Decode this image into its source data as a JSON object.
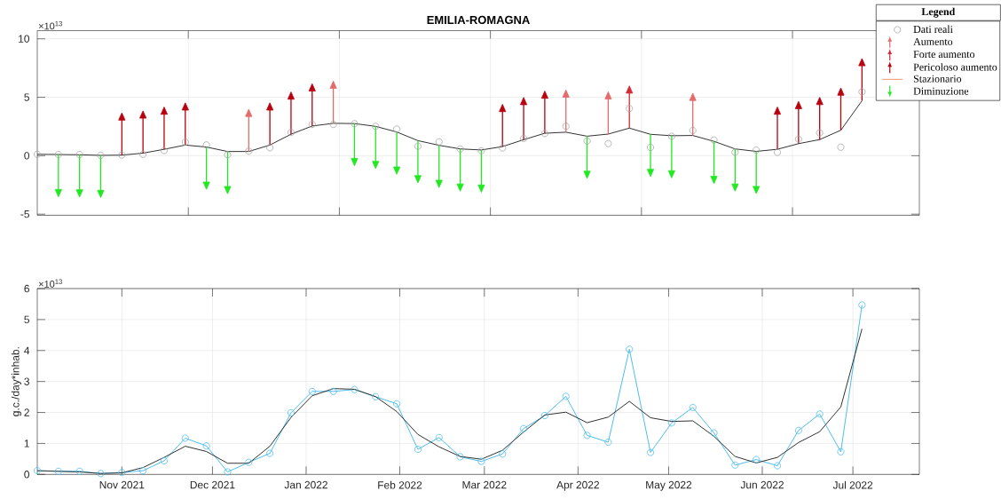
{
  "chart_data": [
    {
      "type": "line",
      "title": "EMILIA-ROMAGNA",
      "annotations": [
        "×10$^{13}$"
      ],
      "x": [
        "2021-10-04",
        "2021-10-11",
        "2021-10-18",
        "2021-10-25",
        "2021-11-01",
        "2021-11-08",
        "2021-11-15",
        "2021-11-22",
        "2021-11-29",
        "2021-12-06",
        "2021-12-13",
        "2021-12-20",
        "2021-12-27",
        "2022-01-03",
        "2022-01-10",
        "2022-01-17",
        "2022-01-24",
        "2022-01-31",
        "2022-02-07",
        "2022-02-14",
        "2022-02-21",
        "2022-02-28",
        "2022-03-07",
        "2022-03-14",
        "2022-03-21",
        "2022-03-28",
        "2022-04-04",
        "2022-04-11",
        "2022-04-18",
        "2022-04-25",
        "2022-05-02",
        "2022-05-09",
        "2022-05-16",
        "2022-05-23",
        "2022-05-30",
        "2022-06-06",
        "2022-06-13",
        "2022-06-20",
        "2022-06-27",
        "2022-07-04"
      ],
      "xlim": [
        "2021-10-04",
        "2022-07-23"
      ],
      "xticks": [
        {
          "value": "2021-11-23",
          "label": null
        },
        {
          "value": "2022-01-12",
          "label": null
        },
        {
          "value": "2022-03-03",
          "label": null
        },
        {
          "value": "2022-04-22",
          "label": null
        },
        {
          "value": "2022-06-11",
          "label": null
        }
      ],
      "ylim": [
        -5.1,
        10.7
      ],
      "yticks": [
        -5,
        0,
        5,
        10
      ],
      "tick_labels": "y",
      "grid": true,
      "legend": "top right",
      "legend_title": "Legend",
      "series": [
        {
          "name": "Dati reali",
          "type": "scatter",
          "color": "#a6a6a6",
          "marker": "circle",
          "values": [
            0.12,
            0.1,
            0.1,
            0.03,
            0.06,
            0.12,
            0.44,
            1.17,
            0.92,
            0.08,
            0.39,
            0.68,
            1.99,
            2.68,
            2.68,
            2.74,
            2.51,
            2.28,
            0.81,
            1.19,
            0.57,
            0.42,
            0.66,
            1.48,
            1.9,
            2.52,
            1.26,
            1.04,
            4.04,
            0.71,
            1.66,
            2.16,
            1.34,
            0.3,
            0.48,
            0.28,
            1.42,
            1.95,
            0.73,
            5.47
          ]
        },
        {
          "color": "#333333",
          "marker": "none",
          "values": [
            0.12,
            0.1,
            0.08,
            0.03,
            0.05,
            0.22,
            0.55,
            0.91,
            0.74,
            0.36,
            0.36,
            0.91,
            1.84,
            2.54,
            2.77,
            2.75,
            2.51,
            2.03,
            1.29,
            0.89,
            0.58,
            0.49,
            0.78,
            1.37,
            1.92,
            2.01,
            1.67,
            1.85,
            2.36,
            1.83,
            1.71,
            1.73,
            1.23,
            0.58,
            0.37,
            0.55,
            1.03,
            1.38,
            2.18,
            4.7
          ]
        },
        {
          "name": "Aumento",
          "type": "scatter",
          "color": "#e56b6b",
          "marker": "triangle",
          "x": [
            "2021-12-13",
            "2022-01-10",
            "2022-03-28",
            "2022-04-11",
            "2022-05-09"
          ],
          "values": [
            3.56,
            5.97,
            5.21,
            5.05,
            4.93
          ],
          "errors": [
            [
              0.36,
              3.56
            ],
            [
              2.77,
              5.97
            ],
            [
              2.01,
              5.21
            ],
            [
              1.85,
              5.05
            ],
            [
              1.73,
              4.93
            ]
          ]
        },
        {
          "name": "Forte aumento",
          "type": "scatter",
          "color": "#d42a3a",
          "marker": "triangle",
          "x": [
            "2022-04-18"
          ],
          "values": [
            5.56
          ],
          "errors": [
            [
              2.36,
              5.56
            ]
          ]
        },
        {
          "name": "Pericoloso aumento",
          "type": "scatter",
          "color": "#b8000f",
          "marker": "triangle",
          "x": [
            "2021-11-01",
            "2021-11-08",
            "2021-11-15",
            "2021-11-22",
            "2021-12-20",
            "2021-12-27",
            "2022-01-03",
            "2022-03-07",
            "2022-03-14",
            "2022-03-21",
            "2022-06-06",
            "2022-06-13",
            "2022-06-20",
            "2022-06-27",
            "2022-07-04"
          ],
          "values": [
            3.25,
            3.42,
            3.75,
            4.11,
            4.11,
            5.04,
            5.74,
            3.98,
            4.57,
            5.12,
            3.75,
            4.23,
            4.58,
            5.38,
            7.9
          ],
          "errors": [
            [
              0.05,
              3.25
            ],
            [
              0.22,
              3.42
            ],
            [
              0.55,
              3.75
            ],
            [
              0.91,
              4.11
            ],
            [
              0.91,
              4.11
            ],
            [
              1.84,
              5.04
            ],
            [
              2.54,
              5.74
            ],
            [
              0.78,
              3.98
            ],
            [
              1.37,
              4.57
            ],
            [
              1.92,
              5.12
            ],
            [
              0.55,
              3.75
            ],
            [
              1.03,
              4.23
            ],
            [
              1.38,
              4.58
            ],
            [
              2.18,
              5.38
            ],
            [
              4.7,
              7.9
            ]
          ]
        },
        {
          "name": "Stazionario",
          "color": "#f4a582",
          "values": [
            null,
            null,
            null,
            null,
            null,
            null,
            null,
            null,
            null,
            null,
            null,
            null,
            null,
            null,
            null,
            null,
            null,
            null,
            null,
            null,
            null,
            null,
            null,
            null,
            null,
            null,
            null,
            null,
            null,
            null,
            null,
            null,
            null,
            null,
            null,
            null,
            null,
            null,
            null,
            null
          ]
        },
        {
          "name": "Diminuzione",
          "type": "scatter",
          "color": "#22e822",
          "marker": "triangle",
          "x": [
            "2021-10-11",
            "2021-10-18",
            "2021-10-25",
            "2021-11-29",
            "2021-12-06",
            "2022-01-17",
            "2022-01-24",
            "2022-01-31",
            "2022-02-07",
            "2022-02-14",
            "2022-02-21",
            "2022-02-28",
            "2022-04-04",
            "2022-04-25",
            "2022-05-02",
            "2022-05-16",
            "2022-05-23",
            "2022-05-30"
          ],
          "values": [
            -3.1,
            -3.12,
            -3.17,
            -2.46,
            -2.84,
            -0.45,
            -0.69,
            -1.17,
            -1.91,
            -2.31,
            -2.62,
            -2.71,
            -1.53,
            -1.37,
            -1.49,
            -1.97,
            -2.62,
            -2.83
          ],
          "errors": [
            [
              -3.1,
              0.1
            ],
            [
              -3.12,
              0.08
            ],
            [
              -3.17,
              0.03
            ],
            [
              -2.46,
              0.74
            ],
            [
              -2.84,
              0.36
            ],
            [
              -0.45,
              2.75
            ],
            [
              -0.69,
              2.51
            ],
            [
              -1.17,
              2.03
            ],
            [
              -1.91,
              1.29
            ],
            [
              -2.31,
              0.89
            ],
            [
              -2.62,
              0.58
            ],
            [
              -2.71,
              0.49
            ],
            [
              -1.53,
              1.67
            ],
            [
              -1.37,
              1.83
            ],
            [
              -1.49,
              1.71
            ],
            [
              -1.97,
              1.23
            ],
            [
              -2.62,
              0.58
            ],
            [
              -2.83,
              0.37
            ]
          ]
        }
      ]
    },
    {
      "type": "line",
      "ylabel": "g.c./day*inhab.",
      "annotations": [
        "×10$^{13}$"
      ],
      "x": [
        "2021-10-04",
        "2021-10-11",
        "2021-10-18",
        "2021-10-25",
        "2021-11-01",
        "2021-11-08",
        "2021-11-15",
        "2021-11-22",
        "2021-11-29",
        "2021-12-06",
        "2021-12-13",
        "2021-12-20",
        "2021-12-27",
        "2022-01-03",
        "2022-01-10",
        "2022-01-17",
        "2022-01-24",
        "2022-01-31",
        "2022-02-07",
        "2022-02-14",
        "2022-02-21",
        "2022-02-28",
        "2022-03-07",
        "2022-03-14",
        "2022-03-21",
        "2022-03-28",
        "2022-04-04",
        "2022-04-11",
        "2022-04-18",
        "2022-04-25",
        "2022-05-02",
        "2022-05-09",
        "2022-05-16",
        "2022-05-23",
        "2022-05-30",
        "2022-06-06",
        "2022-06-13",
        "2022-06-20",
        "2022-06-27",
        "2022-07-04"
      ],
      "xlim": [
        "2021-10-04",
        "2022-07-23"
      ],
      "xticks": [
        {
          "value": "2021-11-01",
          "label": "Nov 2021"
        },
        {
          "value": "2021-12-01",
          "label": "Dec 2021"
        },
        {
          "value": "2022-01-01",
          "label": "Jan 2022"
        },
        {
          "value": "2022-02-01",
          "label": "Feb 2022"
        },
        {
          "value": "2022-03-01",
          "label": "Mar 2022"
        },
        {
          "value": "2022-04-01",
          "label": "Apr 2022"
        },
        {
          "value": "2022-05-01",
          "label": "May 2022"
        },
        {
          "value": "2022-06-01",
          "label": "Jun 2022"
        },
        {
          "value": "2022-07-01",
          "label": "Jul 2022"
        }
      ],
      "ylim": [
        0,
        6
      ],
      "yticks": [
        0,
        1,
        2,
        3,
        4,
        5,
        6
      ],
      "grid": true,
      "series": [
        {
          "color": "#4dbeee",
          "marker": "circle",
          "values": [
            0.12,
            0.1,
            0.1,
            0.03,
            0.06,
            0.12,
            0.44,
            1.17,
            0.92,
            0.08,
            0.39,
            0.68,
            1.99,
            2.68,
            2.68,
            2.74,
            2.51,
            2.28,
            0.81,
            1.19,
            0.57,
            0.42,
            0.66,
            1.48,
            1.9,
            2.52,
            1.26,
            1.04,
            4.04,
            0.71,
            1.66,
            2.16,
            1.34,
            0.3,
            0.48,
            0.28,
            1.42,
            1.95,
            0.73,
            5.47
          ]
        },
        {
          "color": "#333333",
          "marker": "none",
          "values": [
            0.12,
            0.1,
            0.08,
            0.03,
            0.05,
            0.22,
            0.55,
            0.91,
            0.74,
            0.36,
            0.36,
            0.91,
            1.84,
            2.54,
            2.77,
            2.75,
            2.51,
            2.03,
            1.29,
            0.89,
            0.58,
            0.49,
            0.78,
            1.37,
            1.92,
            2.01,
            1.67,
            1.85,
            2.36,
            1.83,
            1.71,
            1.73,
            1.23,
            0.58,
            0.37,
            0.55,
            1.03,
            1.38,
            2.18,
            4.7
          ]
        }
      ]
    }
  ]
}
